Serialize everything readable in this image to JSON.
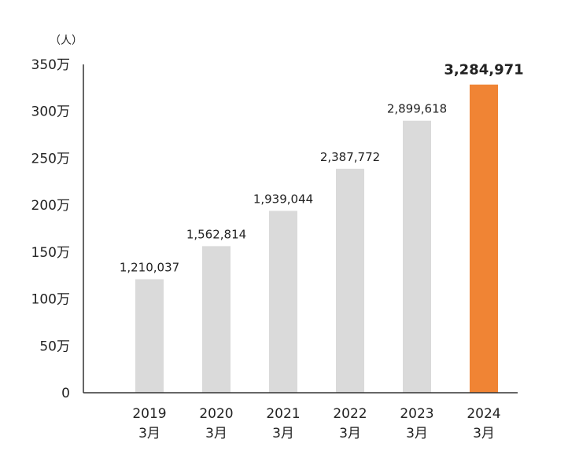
{
  "chart_data": {
    "type": "bar",
    "y_unit_label": "（人）",
    "categories": [
      [
        "2019",
        "3月"
      ],
      [
        "2020",
        "3月"
      ],
      [
        "2021",
        "3月"
      ],
      [
        "2022",
        "3月"
      ],
      [
        "2023",
        "3月"
      ],
      [
        "2024",
        "3月"
      ]
    ],
    "values": [
      1210037,
      1562814,
      1939044,
      2387772,
      2899618,
      3284971
    ],
    "value_labels": [
      "1,210,037",
      "1,562,814",
      "1,939,044",
      "2,387,772",
      "2,899,618",
      "3,284,971"
    ],
    "ylim": [
      0,
      3500000
    ],
    "y_ticks": [
      {
        "value": 0,
        "label": "0"
      },
      {
        "value": 500000,
        "label": "50万"
      },
      {
        "value": 1000000,
        "label": "100万"
      },
      {
        "value": 1500000,
        "label": "150万"
      },
      {
        "value": 2000000,
        "label": "200万"
      },
      {
        "value": 2500000,
        "label": "250万"
      },
      {
        "value": 3000000,
        "label": "300万"
      },
      {
        "value": 3500000,
        "label": "350万"
      }
    ],
    "highlight_index": 5,
    "grid": false,
    "colors": {
      "bar": "#dadada",
      "highlight_bar": "#f08434",
      "highlight_text": "#f08434",
      "axis": "#333333",
      "text": "#222222"
    }
  }
}
